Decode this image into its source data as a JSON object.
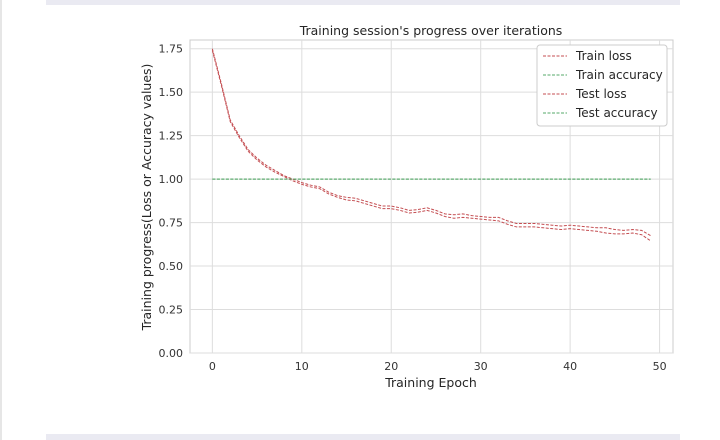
{
  "chart_data": {
    "type": "line",
    "title": "Training session's progress over iterations",
    "xlabel": "Training Epoch",
    "ylabel": "Training progress(Loss or Accuracy values)",
    "xlim": [
      -2.5,
      51.5
    ],
    "ylim": [
      0.0,
      1.8
    ],
    "xticks": [
      "0",
      "10",
      "20",
      "30",
      "40",
      "50"
    ],
    "yticks": [
      "0.00",
      "0.25",
      "0.50",
      "0.75",
      "1.00",
      "1.25",
      "1.50",
      "1.75"
    ],
    "grid": true,
    "legend_position": "top-right",
    "x": [
      0,
      1,
      2,
      3,
      4,
      5,
      6,
      7,
      8,
      9,
      10,
      11,
      12,
      13,
      14,
      15,
      16,
      17,
      18,
      19,
      20,
      21,
      22,
      23,
      24,
      25,
      26,
      27,
      28,
      29,
      30,
      31,
      32,
      33,
      34,
      35,
      36,
      37,
      38,
      39,
      40,
      41,
      42,
      43,
      44,
      45,
      46,
      47,
      48,
      49
    ],
    "series": [
      {
        "name": "Train loss",
        "color": "#c44e52",
        "values": [
          1.75,
          1.55,
          1.34,
          1.25,
          1.17,
          1.12,
          1.08,
          1.05,
          1.02,
          1.0,
          0.98,
          0.965,
          0.955,
          0.925,
          0.905,
          0.895,
          0.89,
          0.875,
          0.86,
          0.845,
          0.845,
          0.835,
          0.82,
          0.825,
          0.835,
          0.82,
          0.8,
          0.795,
          0.8,
          0.79,
          0.785,
          0.78,
          0.78,
          0.76,
          0.745,
          0.745,
          0.745,
          0.74,
          0.735,
          0.73,
          0.735,
          0.73,
          0.725,
          0.72,
          0.72,
          0.71,
          0.705,
          0.71,
          0.705,
          0.675
        ]
      },
      {
        "name": "Train accuracy",
        "color": "#55a868",
        "values": [
          1.0,
          1.0,
          1.0,
          1.0,
          1.0,
          1.0,
          1.0,
          1.0,
          1.0,
          1.0,
          1.0,
          1.0,
          1.0,
          1.0,
          1.0,
          1.0,
          1.0,
          1.0,
          1.0,
          1.0,
          1.0,
          1.0,
          1.0,
          1.0,
          1.0,
          1.0,
          1.0,
          1.0,
          1.0,
          1.0,
          1.0,
          1.0,
          1.0,
          1.0,
          1.0,
          1.0,
          1.0,
          1.0,
          1.0,
          1.0,
          1.0,
          1.0,
          1.0,
          1.0,
          1.0,
          1.0,
          1.0,
          1.0,
          1.0,
          1.0
        ]
      },
      {
        "name": "Test loss",
        "color": "#c44e52",
        "values": [
          1.74,
          1.54,
          1.33,
          1.24,
          1.16,
          1.11,
          1.07,
          1.04,
          1.015,
          0.99,
          0.97,
          0.955,
          0.945,
          0.915,
          0.895,
          0.88,
          0.875,
          0.86,
          0.845,
          0.83,
          0.83,
          0.82,
          0.805,
          0.81,
          0.82,
          0.805,
          0.785,
          0.775,
          0.78,
          0.775,
          0.77,
          0.765,
          0.76,
          0.74,
          0.725,
          0.725,
          0.725,
          0.72,
          0.715,
          0.71,
          0.715,
          0.71,
          0.705,
          0.7,
          0.69,
          0.685,
          0.685,
          0.69,
          0.68,
          0.645
        ]
      },
      {
        "name": "Test accuracy",
        "color": "#55a868",
        "values": [
          1.0,
          1.0,
          1.0,
          1.0,
          1.0,
          1.0,
          1.0,
          1.0,
          1.0,
          1.0,
          1.0,
          1.0,
          1.0,
          1.0,
          1.0,
          1.0,
          1.0,
          1.0,
          1.0,
          1.0,
          1.0,
          1.0,
          1.0,
          1.0,
          1.0,
          1.0,
          1.0,
          1.0,
          1.0,
          1.0,
          1.0,
          1.0,
          1.0,
          1.0,
          1.0,
          1.0,
          1.0,
          1.0,
          1.0,
          1.0,
          1.0,
          1.0,
          1.0,
          1.0,
          1.0,
          1.0,
          1.0,
          1.0,
          1.0,
          1.0
        ]
      }
    ]
  }
}
